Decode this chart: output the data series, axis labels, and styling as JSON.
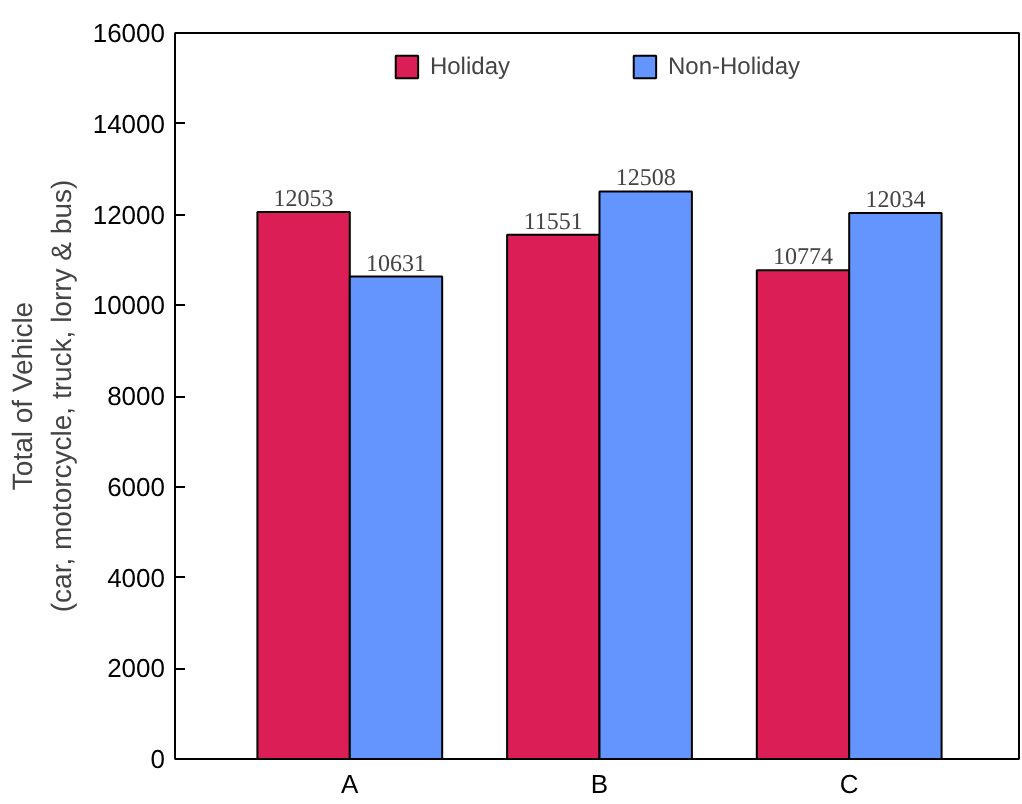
{
  "chart_data": {
    "type": "bar",
    "ylabel": "Total of Vehicle\n(car, motorcycle, truck, lorry & bus)",
    "categories": [
      "A",
      "B",
      "C"
    ],
    "series": [
      {
        "name": "Holiday",
        "color": "#dc1e56",
        "values": [
          12053,
          11551,
          10774
        ]
      },
      {
        "name": "Non-Holiday",
        "color": "#6495fe",
        "values": [
          10631,
          12508,
          12034
        ]
      }
    ],
    "ylim": [
      0,
      16000
    ],
    "yticks": [
      0,
      2000,
      4000,
      6000,
      8000,
      10000,
      12000,
      14000,
      16000
    ],
    "grid": false,
    "legend": "top",
    "data_labels": true
  }
}
